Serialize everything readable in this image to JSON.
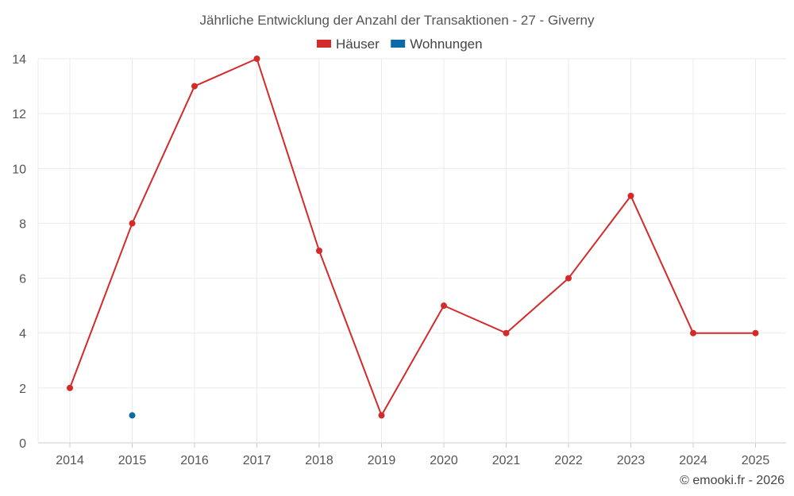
{
  "chart_data": {
    "type": "line",
    "title": "Jährliche Entwicklung der Anzahl der Transaktionen - 27 - Giverny",
    "categories": [
      "2014",
      "2015",
      "2016",
      "2017",
      "2018",
      "2019",
      "2020",
      "2021",
      "2022",
      "2023",
      "2024",
      "2025"
    ],
    "series": [
      {
        "name": "Häuser",
        "color": "#d32a2a",
        "values": [
          2,
          8,
          13,
          14,
          7,
          1,
          5,
          4,
          6,
          9,
          4,
          4
        ]
      },
      {
        "name": "Wohnungen",
        "color": "#0d6aa8",
        "values": [
          null,
          1,
          null,
          null,
          null,
          null,
          null,
          null,
          null,
          null,
          null,
          null
        ]
      }
    ],
    "ylim": [
      0,
      14
    ],
    "yticks": [
      0,
      2,
      4,
      6,
      8,
      10,
      12,
      14
    ],
    "grid": true,
    "legend_position": "top-center"
  },
  "credit": "© emooki.fr - 2026"
}
